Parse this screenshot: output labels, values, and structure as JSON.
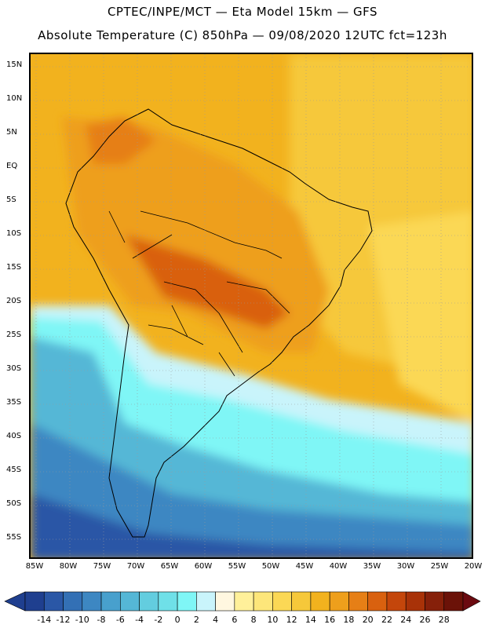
{
  "title": {
    "line1": "CPTEC/INPE/MCT —  Eta Model 15km — GFS",
    "line2": "Absolute Temperature (C) 850hPa — 09/08/2020 12UTC fct=123h"
  },
  "axes": {
    "lat_labels": [
      "15N",
      "10N",
      "5N",
      "EQ",
      "5S",
      "10S",
      "15S",
      "20S",
      "25S",
      "30S",
      "35S",
      "40S",
      "45S",
      "50S",
      "55S"
    ],
    "lon_labels": [
      "85W",
      "80W",
      "75W",
      "70W",
      "65W",
      "60W",
      "55W",
      "50W",
      "45W",
      "40W",
      "35W",
      "30W",
      "25W",
      "20W"
    ]
  },
  "colorbar": {
    "labels": [
      "-14",
      "-12",
      "-10",
      "-8",
      "-6",
      "-4",
      "-2",
      "0",
      "2",
      "4",
      "6",
      "8",
      "10",
      "12",
      "14",
      "16",
      "18",
      "20",
      "22",
      "24",
      "26",
      "28"
    ],
    "colors": [
      "#1f3f8f",
      "#2a57a6",
      "#3370b5",
      "#3d87c2",
      "#48a0cd",
      "#55b7d6",
      "#63cddf",
      "#6fe0e8",
      "#7ff6f6",
      "#c9f4fb",
      "#fff7e0",
      "#fff09a",
      "#fde67a",
      "#fbd855",
      "#f6c83a",
      "#f2b21e",
      "#ee9f1c",
      "#e67f16",
      "#d9610f",
      "#c4460b",
      "#a83208",
      "#86200a",
      "#6b1208"
    ]
  }
}
